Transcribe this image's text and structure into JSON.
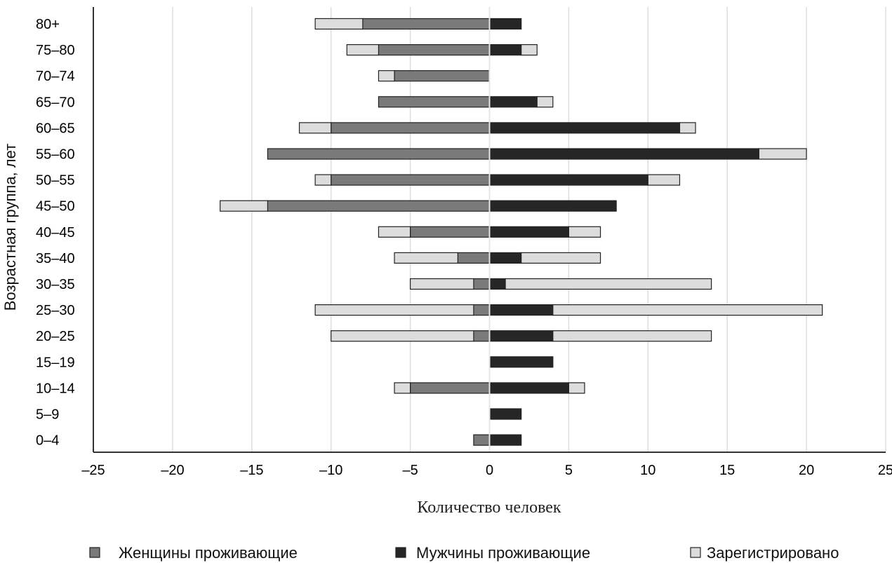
{
  "chart_data": {
    "type": "bar",
    "orientation": "horizontal",
    "stacked": true,
    "ylabel": "Возрастная группа, лет",
    "xlabel": "Количество человек",
    "xlim": [
      -25,
      25
    ],
    "x_ticks": [
      "–25",
      "–20",
      "–15",
      "–10",
      "–5",
      "0",
      "5",
      "10",
      "15",
      "20",
      "25"
    ],
    "grid": true,
    "legend_position": "bottom",
    "categories": [
      "80+",
      "75–80",
      "70–74",
      "65–70",
      "60–65",
      "55–60",
      "50–55",
      "45–50",
      "40–45",
      "35–40",
      "30–35",
      "25–30",
      "20–25",
      "15–19",
      "10–14",
      "5–9",
      "0–4"
    ],
    "series": [
      {
        "name": "Женщины проживающие",
        "key": "women",
        "color": "#7a7a7a",
        "values": [
          -8,
          -7,
          -6,
          -7,
          -10,
          -14,
          -10,
          -14,
          -5,
          -2,
          -1,
          -1,
          -1,
          0,
          -5,
          0,
          -1
        ]
      },
      {
        "name": "Мужчины проживающие",
        "key": "men",
        "color": "#262626",
        "values": [
          2,
          2,
          0,
          3,
          12,
          17,
          10,
          8,
          5,
          2,
          1,
          4,
          4,
          4,
          5,
          2,
          2
        ]
      },
      {
        "name": "Зарегистрировано",
        "key": "registered",
        "color": "#dcdcdc",
        "female_side_values": [
          -3,
          -2,
          -1,
          0,
          -2,
          0,
          -1,
          -3,
          -2,
          -4,
          -4,
          -10,
          -9,
          0,
          -1,
          0,
          0
        ],
        "male_side_values": [
          0,
          1,
          0,
          1,
          1,
          3,
          2,
          0,
          2,
          5,
          13,
          17,
          10,
          0,
          1,
          0,
          0
        ]
      }
    ]
  }
}
